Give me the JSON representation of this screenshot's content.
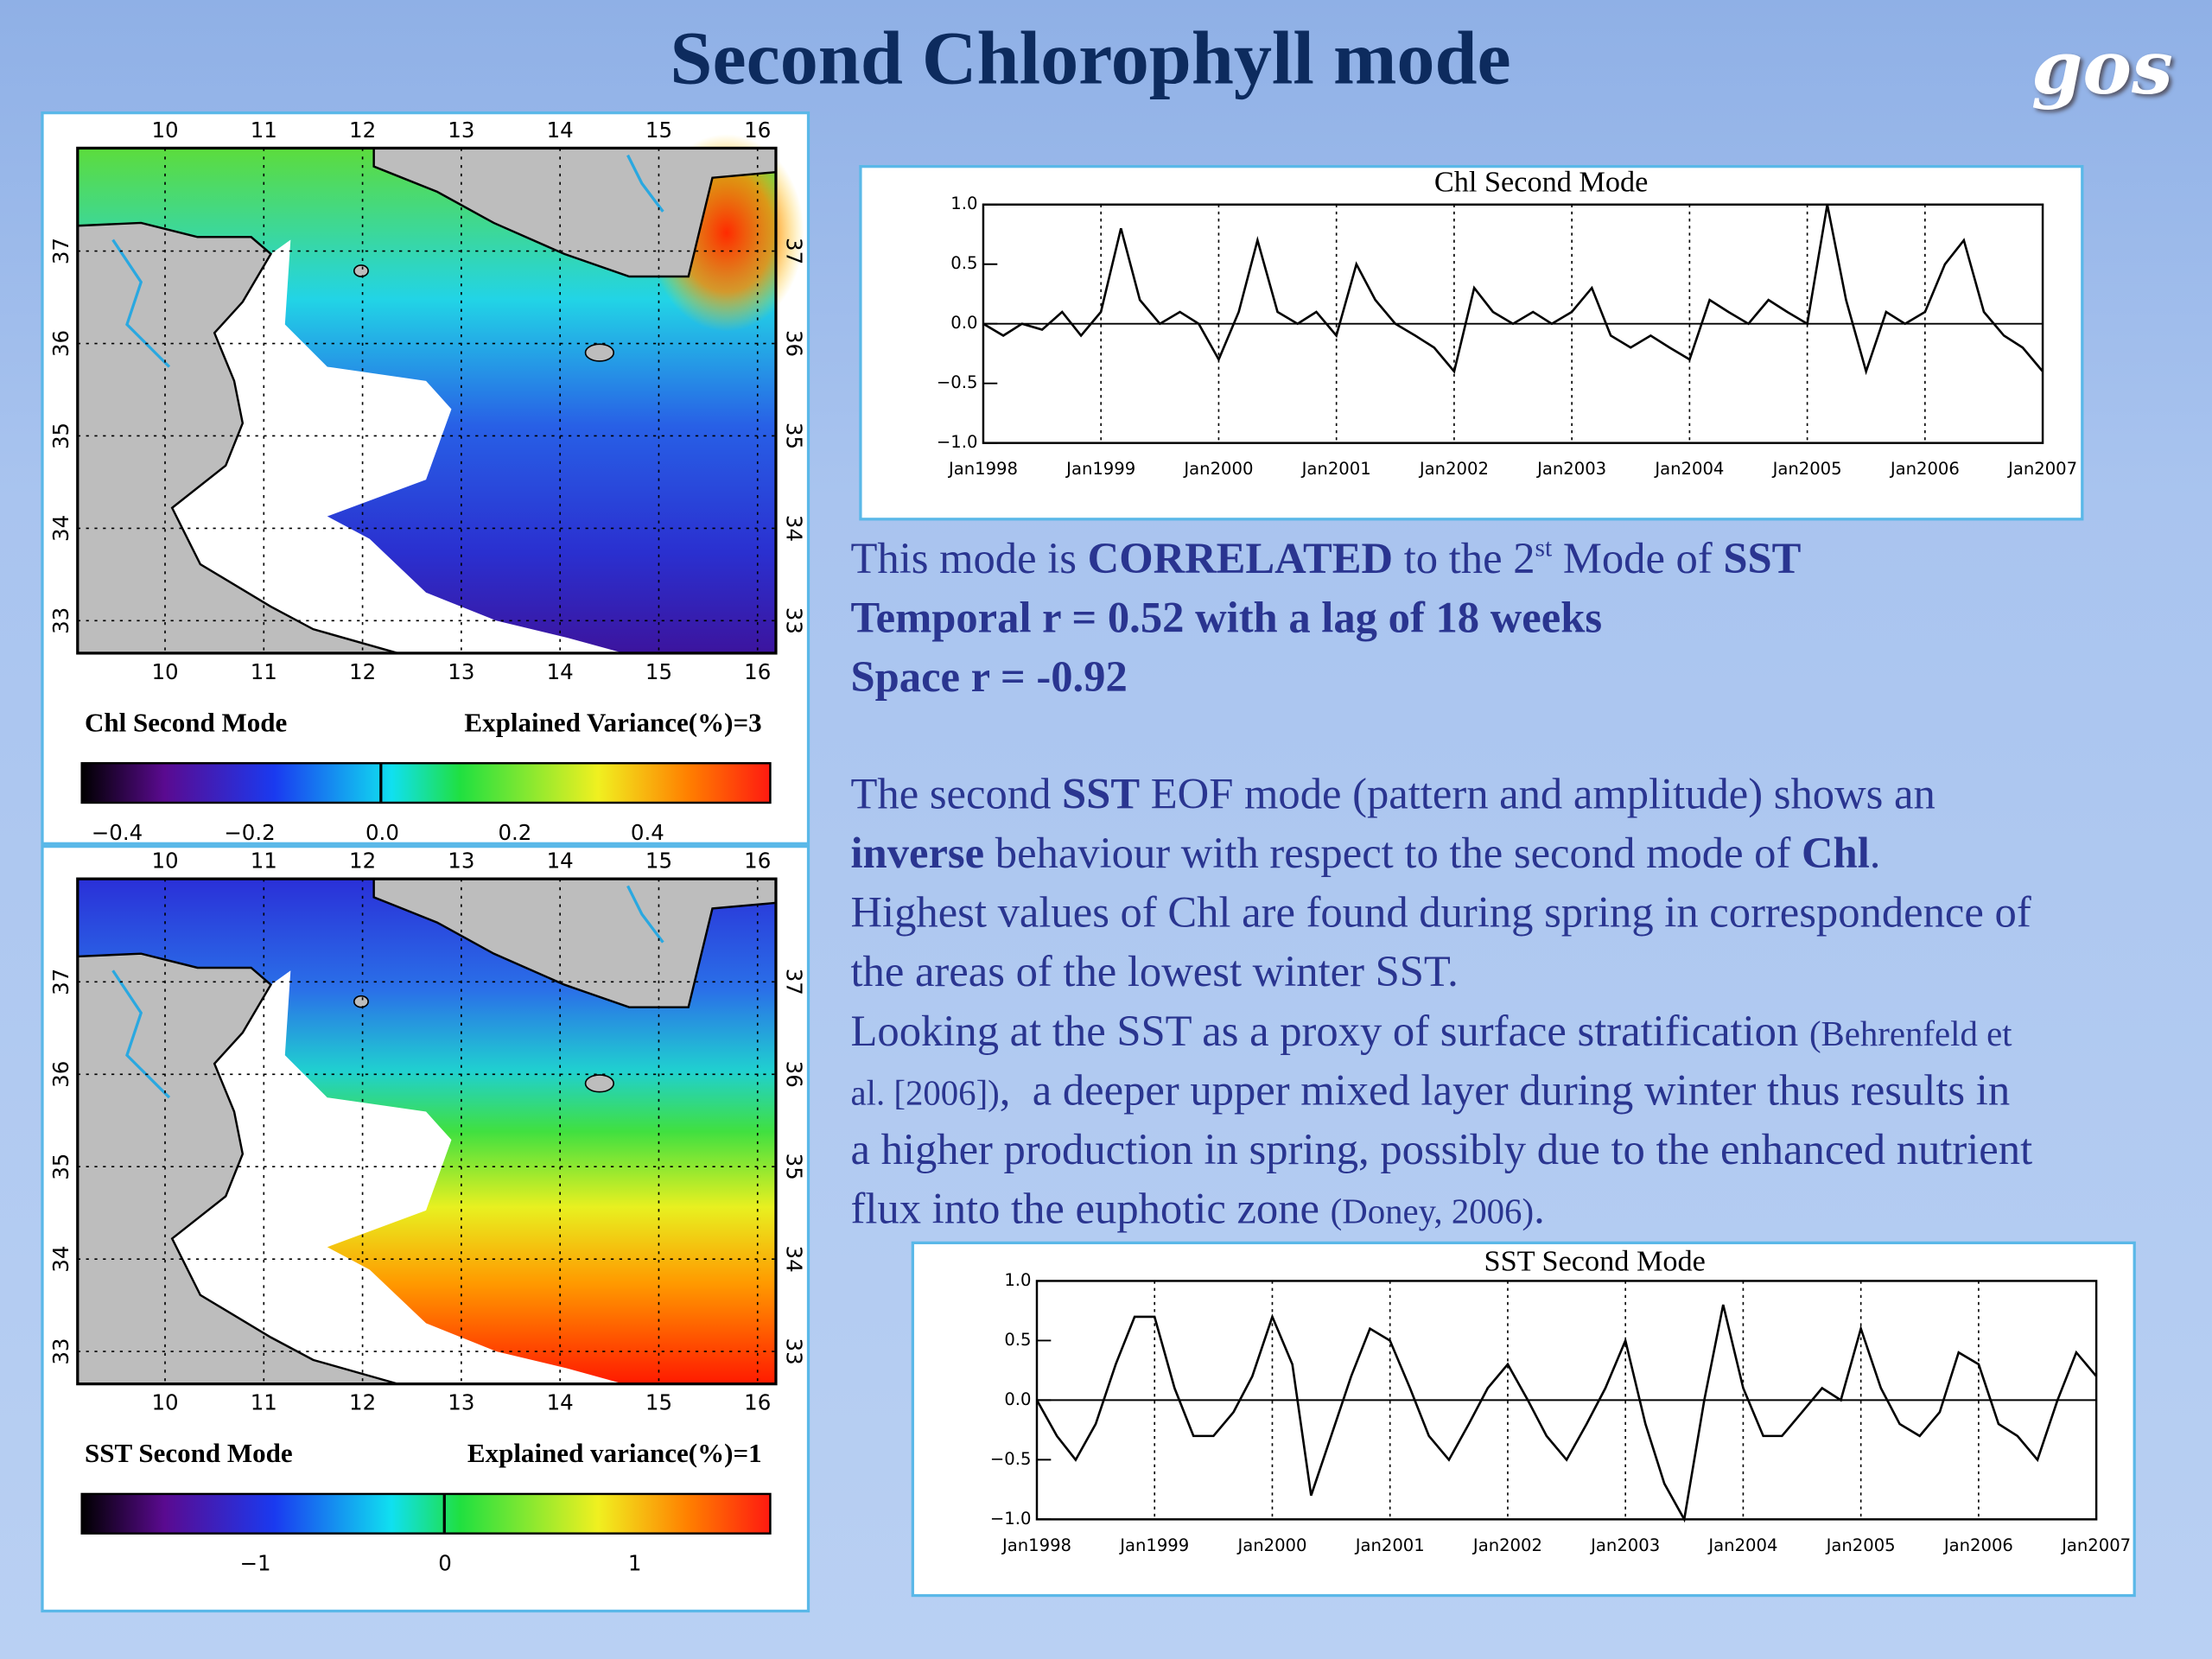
{
  "header": {
    "title": "Second Chlorophyll  mode",
    "logo": "gos"
  },
  "maps": [
    {
      "lon_ticks": [
        "10",
        "11",
        "12",
        "13",
        "14",
        "15",
        "16"
      ],
      "lat_ticks": [
        "37",
        "36",
        "35",
        "34",
        "33"
      ],
      "caption": "Chl Second Mode",
      "variance": "Explained Variance(%)=3",
      "colorbar_ticks": [
        "−0.4",
        "−0.2",
        "0.0",
        "0.2",
        "0.4"
      ]
    },
    {
      "lon_ticks": [
        "10",
        "11",
        "12",
        "13",
        "14",
        "15",
        "16"
      ],
      "lat_ticks": [
        "37",
        "36",
        "35",
        "34",
        "33"
      ],
      "caption": "SST  Second Mode",
      "variance": "Explained variance(%)=1",
      "colorbar_ticks": [
        "−1",
        "0",
        "1"
      ]
    }
  ],
  "chart_data": [
    {
      "type": "line",
      "title": "Chl Second Mode",
      "color": "#000000",
      "x": [
        1998,
        1998.17,
        1998.33,
        1998.5,
        1998.67,
        1998.83,
        1999,
        1999.17,
        1999.33,
        1999.5,
        1999.67,
        1999.83,
        2000,
        2000.17,
        2000.33,
        2000.5,
        2000.67,
        2000.83,
        2001,
        2001.17,
        2001.33,
        2001.5,
        2001.67,
        2001.83,
        2002,
        2002.17,
        2002.33,
        2002.5,
        2002.67,
        2002.83,
        2003,
        2003.17,
        2003.33,
        2003.5,
        2003.67,
        2003.83,
        2004,
        2004.17,
        2004.33,
        2004.5,
        2004.67,
        2004.83,
        2005,
        2005.17,
        2005.33,
        2005.5,
        2005.67,
        2005.83,
        2006,
        2006.17,
        2006.33,
        2006.5,
        2006.67,
        2006.83,
        2007
      ],
      "values": [
        0,
        -0.1,
        0,
        -0.05,
        0.1,
        -0.1,
        0.1,
        0.8,
        0.2,
        0,
        0.1,
        0,
        -0.3,
        0.1,
        0.7,
        0.1,
        0,
        0.1,
        -0.1,
        0.5,
        0.2,
        0,
        -0.1,
        -0.2,
        -0.4,
        0.3,
        0.1,
        0,
        0.1,
        0,
        0.1,
        0.3,
        -0.1,
        -0.2,
        -0.1,
        -0.2,
        -0.3,
        0.2,
        0.1,
        0,
        0.2,
        0.1,
        0,
        1,
        0.2,
        -0.4,
        0.1,
        0,
        0.1,
        0.5,
        0.7,
        0.1,
        -0.1,
        -0.2,
        -0.4
      ],
      "xlim": [
        1998,
        2007
      ],
      "xticks": [
        {
          "value": 1998,
          "label": "Jan1998"
        },
        {
          "value": 1999,
          "label": "Jan1999"
        },
        {
          "value": 2000,
          "label": "Jan2000"
        },
        {
          "value": 2001,
          "label": "Jan2001"
        },
        {
          "value": 2002,
          "label": "Jan2002"
        },
        {
          "value": 2003,
          "label": "Jan2003"
        },
        {
          "value": 2004,
          "label": "Jan2004"
        },
        {
          "value": 2005,
          "label": "Jan2005"
        },
        {
          "value": 2006,
          "label": "Jan2006"
        },
        {
          "value": 2007,
          "label": "Jan2007"
        }
      ],
      "ylim": [
        -1,
        1
      ],
      "yticks": [
        {
          "value": 1,
          "label": "1.0"
        },
        {
          "value": 0.5,
          "label": "0.5"
        },
        {
          "value": 0,
          "label": "0.0"
        },
        {
          "value": -0.5,
          "label": "−0.5"
        },
        {
          "value": -1,
          "label": "−1.0"
        }
      ]
    },
    {
      "type": "line",
      "title": "SST Second Mode",
      "color": "#000000",
      "x": [
        1998,
        1998.17,
        1998.33,
        1998.5,
        1998.67,
        1998.83,
        1999,
        1999.17,
        1999.33,
        1999.5,
        1999.67,
        1999.83,
        2000,
        2000.17,
        2000.33,
        2000.5,
        2000.67,
        2000.83,
        2001,
        2001.17,
        2001.33,
        2001.5,
        2001.67,
        2001.83,
        2002,
        2002.17,
        2002.33,
        2002.5,
        2002.67,
        2002.83,
        2003,
        2003.17,
        2003.33,
        2003.5,
        2003.67,
        2003.83,
        2004,
        2004.17,
        2004.33,
        2004.5,
        2004.67,
        2004.83,
        2005,
        2005.17,
        2005.33,
        2005.5,
        2005.67,
        2005.83,
        2006,
        2006.17,
        2006.33,
        2006.5,
        2006.67,
        2006.83,
        2007
      ],
      "values": [
        0,
        -0.3,
        -0.5,
        -0.2,
        0.3,
        0.7,
        0.7,
        0.1,
        -0.3,
        -0.3,
        -0.1,
        0.2,
        0.7,
        0.3,
        -0.8,
        -0.3,
        0.2,
        0.6,
        0.5,
        0.1,
        -0.3,
        -0.5,
        -0.2,
        0.1,
        0.3,
        0,
        -0.3,
        -0.5,
        -0.2,
        0.1,
        0.5,
        -0.2,
        -0.7,
        -1,
        0,
        0.8,
        0.1,
        -0.3,
        -0.3,
        -0.1,
        0.1,
        0,
        0.6,
        0.1,
        -0.2,
        -0.3,
        -0.1,
        0.4,
        0.3,
        -0.2,
        -0.3,
        -0.5,
        0,
        0.4,
        0.2
      ],
      "xlim": [
        1998,
        2007
      ],
      "xticks": [
        {
          "value": 1998,
          "label": "Jan1998"
        },
        {
          "value": 1999,
          "label": "Jan1999"
        },
        {
          "value": 2000,
          "label": "Jan2000"
        },
        {
          "value": 2001,
          "label": "Jan2001"
        },
        {
          "value": 2002,
          "label": "Jan2002"
        },
        {
          "value": 2003,
          "label": "Jan2003"
        },
        {
          "value": 2004,
          "label": "Jan2004"
        },
        {
          "value": 2005,
          "label": "Jan2005"
        },
        {
          "value": 2006,
          "label": "Jan2006"
        },
        {
          "value": 2007,
          "label": "Jan2007"
        }
      ],
      "ylim": [
        -1,
        1
      ],
      "yticks": [
        {
          "value": 1,
          "label": "1.0"
        },
        {
          "value": 0.5,
          "label": "0.5"
        },
        {
          "value": 0,
          "label": "0.0"
        },
        {
          "value": -0.5,
          "label": "−0.5"
        },
        {
          "value": -1,
          "label": "−1.0"
        }
      ]
    }
  ],
  "body": {
    "lines": [
      {
        "runs": [
          {
            "text": "This mode is "
          },
          {
            "text": "CORRELATED",
            "bold": true
          },
          {
            "text": " to the 2"
          },
          {
            "text": "st",
            "sup": true
          },
          {
            "text": " Mode of "
          },
          {
            "text": "SST",
            "bold": true
          }
        ]
      },
      {
        "runs": [
          {
            "text": "Temporal r = 0.52 with a lag of 18 weeks",
            "bold": true
          }
        ]
      },
      {
        "runs": [
          {
            "text": "Space r = -0.92",
            "bold": true
          }
        ]
      },
      {
        "runs": [
          {
            "text": "The second "
          },
          {
            "text": "SST",
            "bold": true
          },
          {
            "text": " EOF mode (pattern and amplitude) shows an"
          }
        ]
      },
      {
        "runs": [
          {
            "text": "inverse",
            "bold": true
          },
          {
            "text": " behaviour with respect to the second mode of "
          },
          {
            "text": "Chl",
            "bold": true
          },
          {
            "text": "."
          }
        ]
      },
      {
        "runs": [
          {
            "text": "Highest values of Chl are found during spring in correspondence of"
          }
        ]
      },
      {
        "runs": [
          {
            "text": "the areas of the lowest winter SST."
          }
        ]
      },
      {
        "runs": [
          {
            "text": "Looking at the SST as a proxy of surface stratification "
          },
          {
            "text": "(Behrenfeld et",
            "small": true
          }
        ]
      },
      {
        "runs": [
          {
            "text": "al. [2006])",
            "small": true
          },
          {
            "text": ",  a deeper upper mixed layer during winter thus results in"
          }
        ]
      },
      {
        "runs": [
          {
            "text": "a higher production in spring, possibly due to the enhanced nutrient"
          }
        ]
      },
      {
        "runs": [
          {
            "text": "flux into the euphotic zone "
          },
          {
            "text": "(Doney, 2006)",
            "small": true
          },
          {
            "text": "."
          }
        ]
      }
    ]
  }
}
